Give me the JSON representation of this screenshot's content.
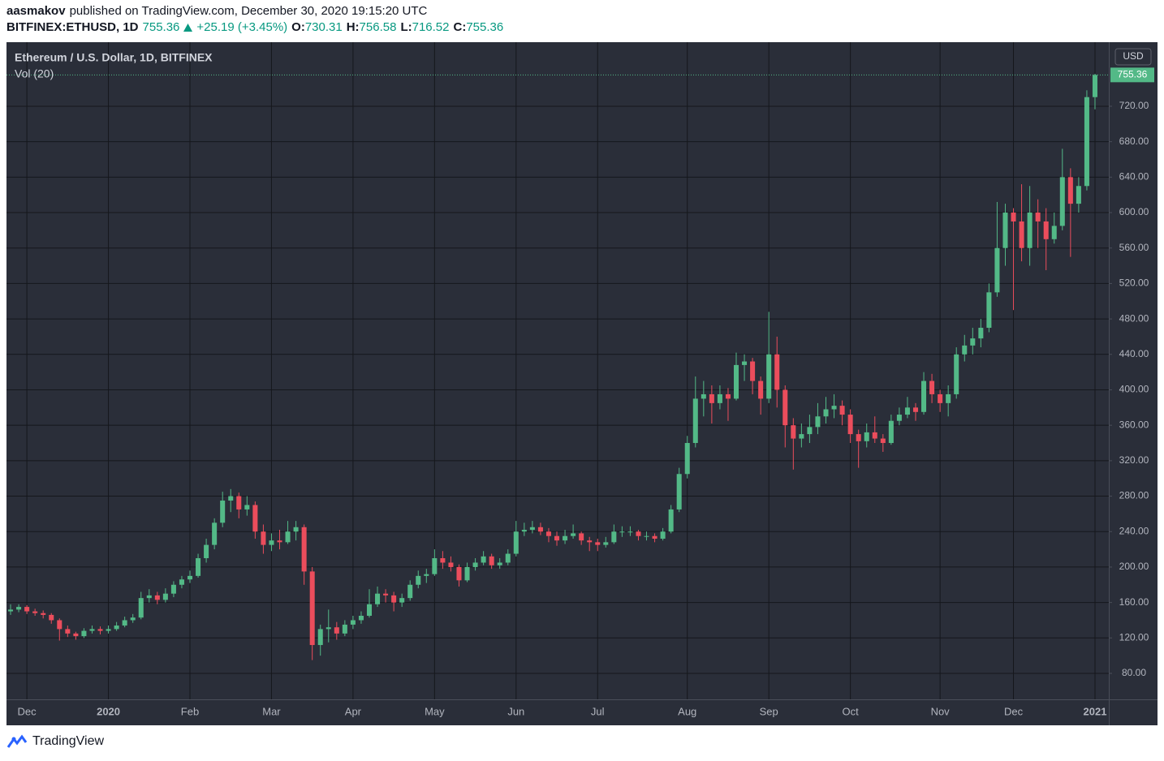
{
  "header": {
    "author": "aasmakov",
    "published": "published on TradingView.com, December 30, 2020 19:15:20 UTC",
    "symbol": "BITFINEX:ETHUSD, 1D",
    "change": "+25.19 (+3.45%)",
    "ohlc_labels": [
      "O:",
      "H:",
      "L:",
      "C:"
    ],
    "brand": "TradingView"
  },
  "chart_data": {
    "type": "candlestick",
    "title": "Ethereum / U.S. Dollar, 1D, BITFINEX",
    "volume_label": "Vol (20)",
    "currency": "USD",
    "up_color": "#53b987",
    "down_color": "#eb4d5c",
    "grid": true,
    "ylim": [
      50.7,
      792.3
    ],
    "yticks": [
      {
        "value": 80,
        "label": "80.00"
      },
      {
        "value": 120,
        "label": "120.00"
      },
      {
        "value": 160,
        "label": "160.00"
      },
      {
        "value": 200,
        "label": "200.00"
      },
      {
        "value": 240,
        "label": "240.00"
      },
      {
        "value": 280,
        "label": "280.00"
      },
      {
        "value": 320,
        "label": "320.00"
      },
      {
        "value": 360,
        "label": "360.00"
      },
      {
        "value": 400,
        "label": "400.00"
      },
      {
        "value": 440,
        "label": "440.00"
      },
      {
        "value": 480,
        "label": "480.00"
      },
      {
        "value": 520,
        "label": "520.00"
      },
      {
        "value": 560,
        "label": "560.00"
      },
      {
        "value": 600,
        "label": "600.00"
      },
      {
        "value": 640,
        "label": "640.00"
      },
      {
        "value": 680,
        "label": "680.00"
      },
      {
        "value": 720,
        "label": "720.00"
      }
    ],
    "categories": [
      null,
      null,
      "Dec",
      null,
      null,
      null,
      null,
      null,
      null,
      null,
      null,
      null,
      "2020",
      null,
      null,
      null,
      null,
      null,
      null,
      null,
      null,
      null,
      "Feb",
      null,
      null,
      null,
      null,
      null,
      null,
      null,
      null,
      null,
      "Mar",
      null,
      null,
      null,
      null,
      null,
      null,
      null,
      null,
      null,
      "Apr",
      null,
      null,
      null,
      null,
      null,
      null,
      null,
      null,
      null,
      "May",
      null,
      null,
      null,
      null,
      null,
      null,
      null,
      null,
      null,
      "Jun",
      null,
      null,
      null,
      null,
      null,
      null,
      null,
      null,
      null,
      "Jul",
      null,
      null,
      null,
      null,
      null,
      null,
      null,
      null,
      null,
      null,
      "Aug",
      null,
      null,
      null,
      null,
      null,
      null,
      null,
      null,
      null,
      "Sep",
      null,
      null,
      null,
      null,
      null,
      null,
      null,
      null,
      null,
      "Oct",
      null,
      null,
      null,
      null,
      null,
      null,
      null,
      null,
      null,
      null,
      "Nov",
      null,
      null,
      null,
      null,
      null,
      null,
      null,
      null,
      "Dec",
      null,
      null,
      null,
      null,
      null,
      null,
      null,
      null,
      null,
      "2021"
    ],
    "ohlc": [
      [
        150,
        158,
        146,
        152
      ],
      [
        152,
        158,
        149,
        155
      ],
      [
        155,
        157,
        147,
        150
      ],
      [
        150,
        153,
        145,
        148
      ],
      [
        148,
        151,
        142,
        146
      ],
      [
        146,
        148,
        136,
        140
      ],
      [
        140,
        142,
        117,
        130
      ],
      [
        130,
        134,
        121,
        125
      ],
      [
        125,
        127,
        118,
        122
      ],
      [
        122,
        131,
        120,
        128
      ],
      [
        128,
        134,
        125,
        130
      ],
      [
        130,
        133,
        124,
        128
      ],
      [
        128,
        134,
        125,
        130
      ],
      [
        130,
        138,
        128,
        134
      ],
      [
        134,
        144,
        132,
        140
      ],
      [
        140,
        147,
        137,
        143
      ],
      [
        143,
        172,
        141,
        165
      ],
      [
        165,
        175,
        160,
        168
      ],
      [
        168,
        172,
        158,
        163
      ],
      [
        163,
        176,
        160,
        170
      ],
      [
        170,
        184,
        166,
        180
      ],
      [
        180,
        190,
        176,
        186
      ],
      [
        186,
        196,
        182,
        190
      ],
      [
        190,
        215,
        188,
        210
      ],
      [
        210,
        232,
        205,
        225
      ],
      [
        225,
        255,
        220,
        250
      ],
      [
        250,
        285,
        245,
        275
      ],
      [
        275,
        288,
        262,
        280
      ],
      [
        280,
        284,
        255,
        265
      ],
      [
        265,
        280,
        258,
        270
      ],
      [
        270,
        274,
        232,
        240
      ],
      [
        240,
        248,
        215,
        225
      ],
      [
        225,
        238,
        218,
        230
      ],
      [
        230,
        242,
        220,
        228
      ],
      [
        228,
        252,
        226,
        240
      ],
      [
        240,
        252,
        230,
        245
      ],
      [
        245,
        248,
        180,
        195
      ],
      [
        195,
        200,
        95,
        112
      ],
      [
        112,
        135,
        100,
        130
      ],
      [
        130,
        152,
        115,
        132
      ],
      [
        132,
        138,
        118,
        125
      ],
      [
        125,
        140,
        122,
        135
      ],
      [
        135,
        145,
        130,
        140
      ],
      [
        140,
        150,
        136,
        145
      ],
      [
        145,
        175,
        143,
        158
      ],
      [
        158,
        178,
        155,
        170
      ],
      [
        170,
        175,
        160,
        168
      ],
      [
        168,
        172,
        150,
        160
      ],
      [
        160,
        170,
        155,
        165
      ],
      [
        165,
        185,
        162,
        180
      ],
      [
        180,
        196,
        176,
        190
      ],
      [
        190,
        198,
        182,
        192
      ],
      [
        192,
        220,
        190,
        210
      ],
      [
        210,
        218,
        198,
        205
      ],
      [
        205,
        212,
        195,
        200
      ],
      [
        200,
        203,
        178,
        185
      ],
      [
        185,
        205,
        183,
        200
      ],
      [
        200,
        210,
        196,
        205
      ],
      [
        205,
        218,
        202,
        212
      ],
      [
        212,
        215,
        198,
        202
      ],
      [
        202,
        210,
        198,
        205
      ],
      [
        205,
        220,
        202,
        215
      ],
      [
        215,
        252,
        212,
        240
      ],
      [
        240,
        250,
        235,
        242
      ],
      [
        242,
        252,
        238,
        245
      ],
      [
        245,
        250,
        236,
        240
      ],
      [
        240,
        244,
        228,
        235
      ],
      [
        235,
        240,
        224,
        230
      ],
      [
        230,
        242,
        226,
        235
      ],
      [
        235,
        248,
        232,
        238
      ],
      [
        238,
        240,
        225,
        230
      ],
      [
        230,
        234,
        218,
        228
      ],
      [
        228,
        232,
        218,
        225
      ],
      [
        225,
        234,
        222,
        228
      ],
      [
        228,
        248,
        226,
        240
      ],
      [
        240,
        246,
        234,
        240
      ],
      [
        240,
        246,
        235,
        240
      ],
      [
        240,
        242,
        230,
        235
      ],
      [
        235,
        240,
        230,
        235
      ],
      [
        235,
        238,
        228,
        232
      ],
      [
        232,
        244,
        230,
        240
      ],
      [
        240,
        270,
        238,
        265
      ],
      [
        265,
        312,
        262,
        305
      ],
      [
        305,
        348,
        300,
        340
      ],
      [
        340,
        415,
        335,
        390
      ],
      [
        390,
        410,
        370,
        395
      ],
      [
        395,
        405,
        362,
        385
      ],
      [
        385,
        405,
        378,
        395
      ],
      [
        395,
        402,
        365,
        390
      ],
      [
        390,
        442,
        388,
        428
      ],
      [
        428,
        440,
        410,
        432
      ],
      [
        432,
        436,
        395,
        410
      ],
      [
        410,
        415,
        372,
        390
      ],
      [
        390,
        488,
        385,
        440
      ],
      [
        440,
        460,
        380,
        400
      ],
      [
        400,
        405,
        335,
        360
      ],
      [
        360,
        368,
        310,
        345
      ],
      [
        345,
        362,
        335,
        350
      ],
      [
        350,
        372,
        340,
        358
      ],
      [
        358,
        385,
        350,
        370
      ],
      [
        370,
        392,
        362,
        378
      ],
      [
        378,
        395,
        368,
        382
      ],
      [
        382,
        388,
        360,
        372
      ],
      [
        372,
        378,
        340,
        350
      ],
      [
        350,
        355,
        312,
        342
      ],
      [
        342,
        362,
        335,
        352
      ],
      [
        352,
        370,
        340,
        345
      ],
      [
        345,
        350,
        330,
        340
      ],
      [
        340,
        372,
        338,
        365
      ],
      [
        365,
        380,
        360,
        372
      ],
      [
        372,
        392,
        368,
        380
      ],
      [
        380,
        385,
        365,
        375
      ],
      [
        375,
        420,
        372,
        410
      ],
      [
        410,
        418,
        385,
        395
      ],
      [
        395,
        400,
        375,
        385
      ],
      [
        385,
        405,
        370,
        395
      ],
      [
        395,
        448,
        390,
        440
      ],
      [
        440,
        462,
        432,
        450
      ],
      [
        450,
        470,
        440,
        458
      ],
      [
        458,
        480,
        448,
        470
      ],
      [
        470,
        520,
        465,
        510
      ],
      [
        510,
        612,
        505,
        560
      ],
      [
        560,
        610,
        540,
        600
      ],
      [
        600,
        605,
        490,
        590
      ],
      [
        590,
        632,
        545,
        560
      ],
      [
        560,
        630,
        540,
        600
      ],
      [
        600,
        615,
        560,
        590
      ],
      [
        590,
        605,
        535,
        570
      ],
      [
        570,
        600,
        565,
        585
      ],
      [
        585,
        672,
        580,
        640
      ],
      [
        640,
        650,
        550,
        610
      ],
      [
        610,
        640,
        600,
        630
      ],
      [
        630,
        738,
        625,
        730.31
      ],
      [
        730.31,
        756.58,
        716.52,
        755.36
      ]
    ]
  }
}
